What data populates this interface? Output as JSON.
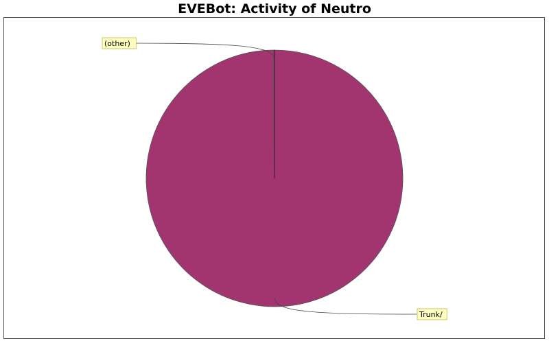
{
  "chart_data": {
    "type": "pie",
    "title": "EVEBot: Activity of Neutro",
    "slices": [
      {
        "label": "Trunk/",
        "value": 99.9,
        "color": "#a23570"
      },
      {
        "label": "(other)",
        "value": 0.1,
        "color": "#a23570"
      }
    ],
    "label_background": "#ffffc0",
    "label_border": "#c8c870",
    "outline_color": "#555555",
    "leader_color": "#444444"
  }
}
